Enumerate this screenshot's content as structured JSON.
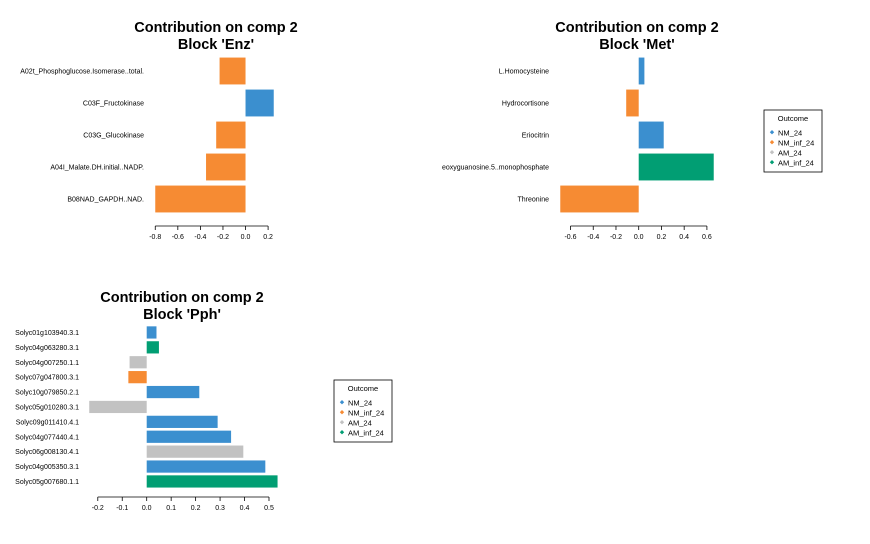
{
  "legend": {
    "title": "Outcome",
    "items": [
      {
        "label": "NM_24",
        "color": "#3b8fcf"
      },
      {
        "label": "NM_inf_24",
        "color": "#f68b33"
      },
      {
        "label": "AM_24",
        "color": "#c2c2c2"
      },
      {
        "label": "AM_inf_24",
        "color": "#019e73"
      }
    ]
  },
  "chart_data": [
    {
      "type": "bar",
      "orientation": "horizontal",
      "title": "Contribution on comp 2",
      "subtitle": "Block 'Enz'",
      "categories": [
        "A02t_Phosphoglucose.Isomerase..total.",
        "C03F_Fructokinase",
        "C03G_Glucokinase",
        "A04I_Malate.DH.initial..NADP.",
        "B08NAD_GAPDH..NAD."
      ],
      "values": [
        -0.23,
        0.25,
        -0.26,
        -0.35,
        -0.8
      ],
      "groups": [
        "NM_inf_24",
        "NM_24",
        "NM_inf_24",
        "NM_inf_24",
        "NM_inf_24"
      ],
      "xlim": [
        -0.82,
        0.27
      ],
      "xticks": [
        -0.8,
        -0.6,
        -0.4,
        -0.2,
        0.0,
        0.2
      ],
      "xtick_labels": [
        "-0.8",
        "-0.6",
        "-0.4",
        "-0.2",
        "0.0",
        "0.2"
      ]
    },
    {
      "type": "bar",
      "orientation": "horizontal",
      "title": "Contribution on comp 2",
      "subtitle": "Block 'Met'",
      "categories": [
        "L.Homocysteine",
        "Hydrocortisone",
        "Eriocitrin",
        "eoxyguanosine.5..monophosphate",
        "Threonine"
      ],
      "values": [
        0.05,
        -0.11,
        0.22,
        0.66,
        -0.69
      ],
      "groups": [
        "NM_24",
        "NM_inf_24",
        "NM_24",
        "AM_inf_24",
        "NM_inf_24"
      ],
      "xlim": [
        -0.71,
        0.68
      ],
      "xticks": [
        -0.6,
        -0.4,
        -0.2,
        0.0,
        0.2,
        0.4,
        0.6
      ],
      "xtick_labels": [
        "-0.6",
        "-0.4",
        "-0.2",
        "0.0",
        "0.2",
        "0.4",
        "0.6"
      ]
    },
    {
      "type": "bar",
      "orientation": "horizontal",
      "title": "Contribution on comp 2",
      "subtitle": "Block 'Pph'",
      "categories": [
        "Solyc01g103940.3.1",
        "Solyc04g063280.3.1",
        "Solyc04g007250.1.1",
        "Solyc07g047800.3.1",
        "Solyc10g079850.2.1",
        "Solyc05g010280.3.1",
        "Solyc09g011410.4.1",
        "Solyc04g077440.4.1",
        "Solyc06g008130.4.1",
        "Solyc04g005350.3.1",
        "Solyc05g007680.1.1"
      ],
      "values": [
        0.04,
        0.05,
        -0.07,
        -0.075,
        0.215,
        -0.235,
        0.29,
        0.345,
        0.395,
        0.485,
        0.535
      ],
      "groups": [
        "NM_24",
        "AM_inf_24",
        "AM_24",
        "NM_inf_24",
        "NM_24",
        "AM_24",
        "NM_24",
        "NM_24",
        "AM_24",
        "NM_24",
        "AM_inf_24"
      ],
      "xlim": [
        -0.24,
        0.545
      ],
      "xticks": [
        -0.2,
        -0.1,
        0.0,
        0.1,
        0.2,
        0.3,
        0.4,
        0.5
      ],
      "xtick_labels": [
        "-0.2",
        "-0.1",
        "0.0",
        "0.1",
        "0.2",
        "0.3",
        "0.4",
        "0.5"
      ]
    }
  ]
}
